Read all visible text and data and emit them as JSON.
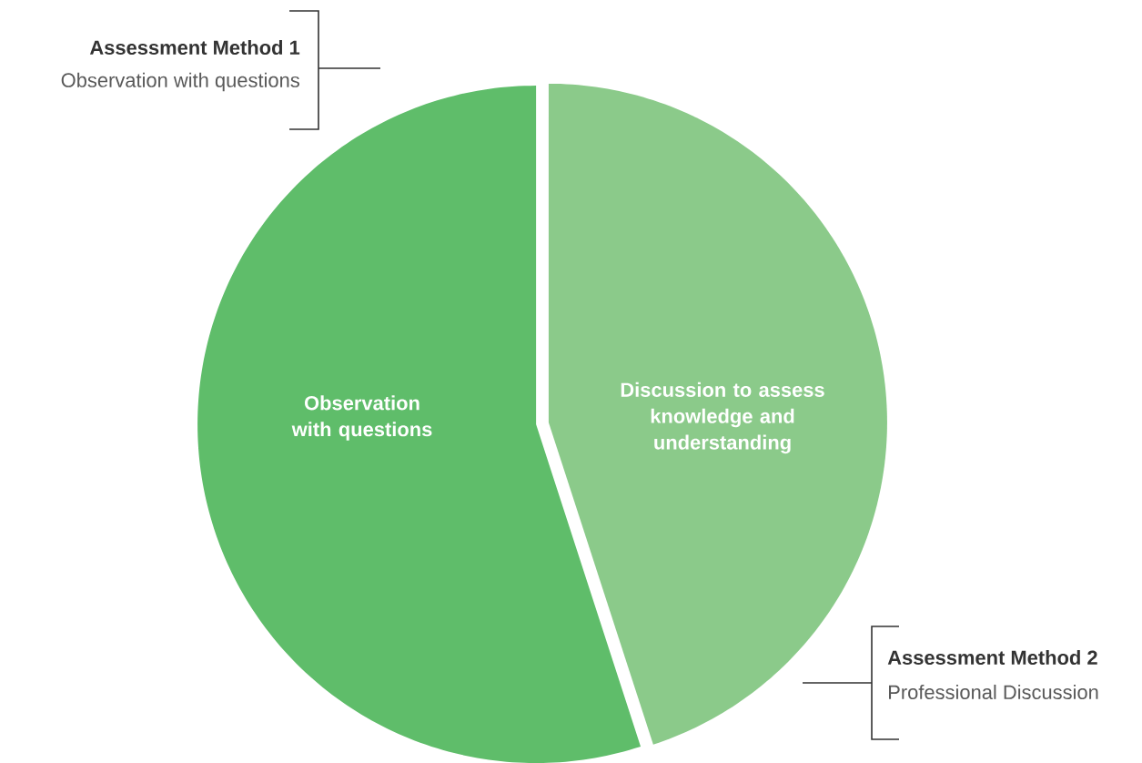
{
  "chart_data": {
    "type": "pie",
    "categories": [
      "Observation with questions",
      "Discussion to assess knowledge and understanding"
    ],
    "values": [
      55,
      45
    ],
    "colors": [
      "#5fbd6a",
      "#8bca8a"
    ],
    "annotations": [
      "Assessment Method 1",
      "Observation with questions",
      "Assessment Method 2",
      "Professional Discussion"
    ]
  }
}
